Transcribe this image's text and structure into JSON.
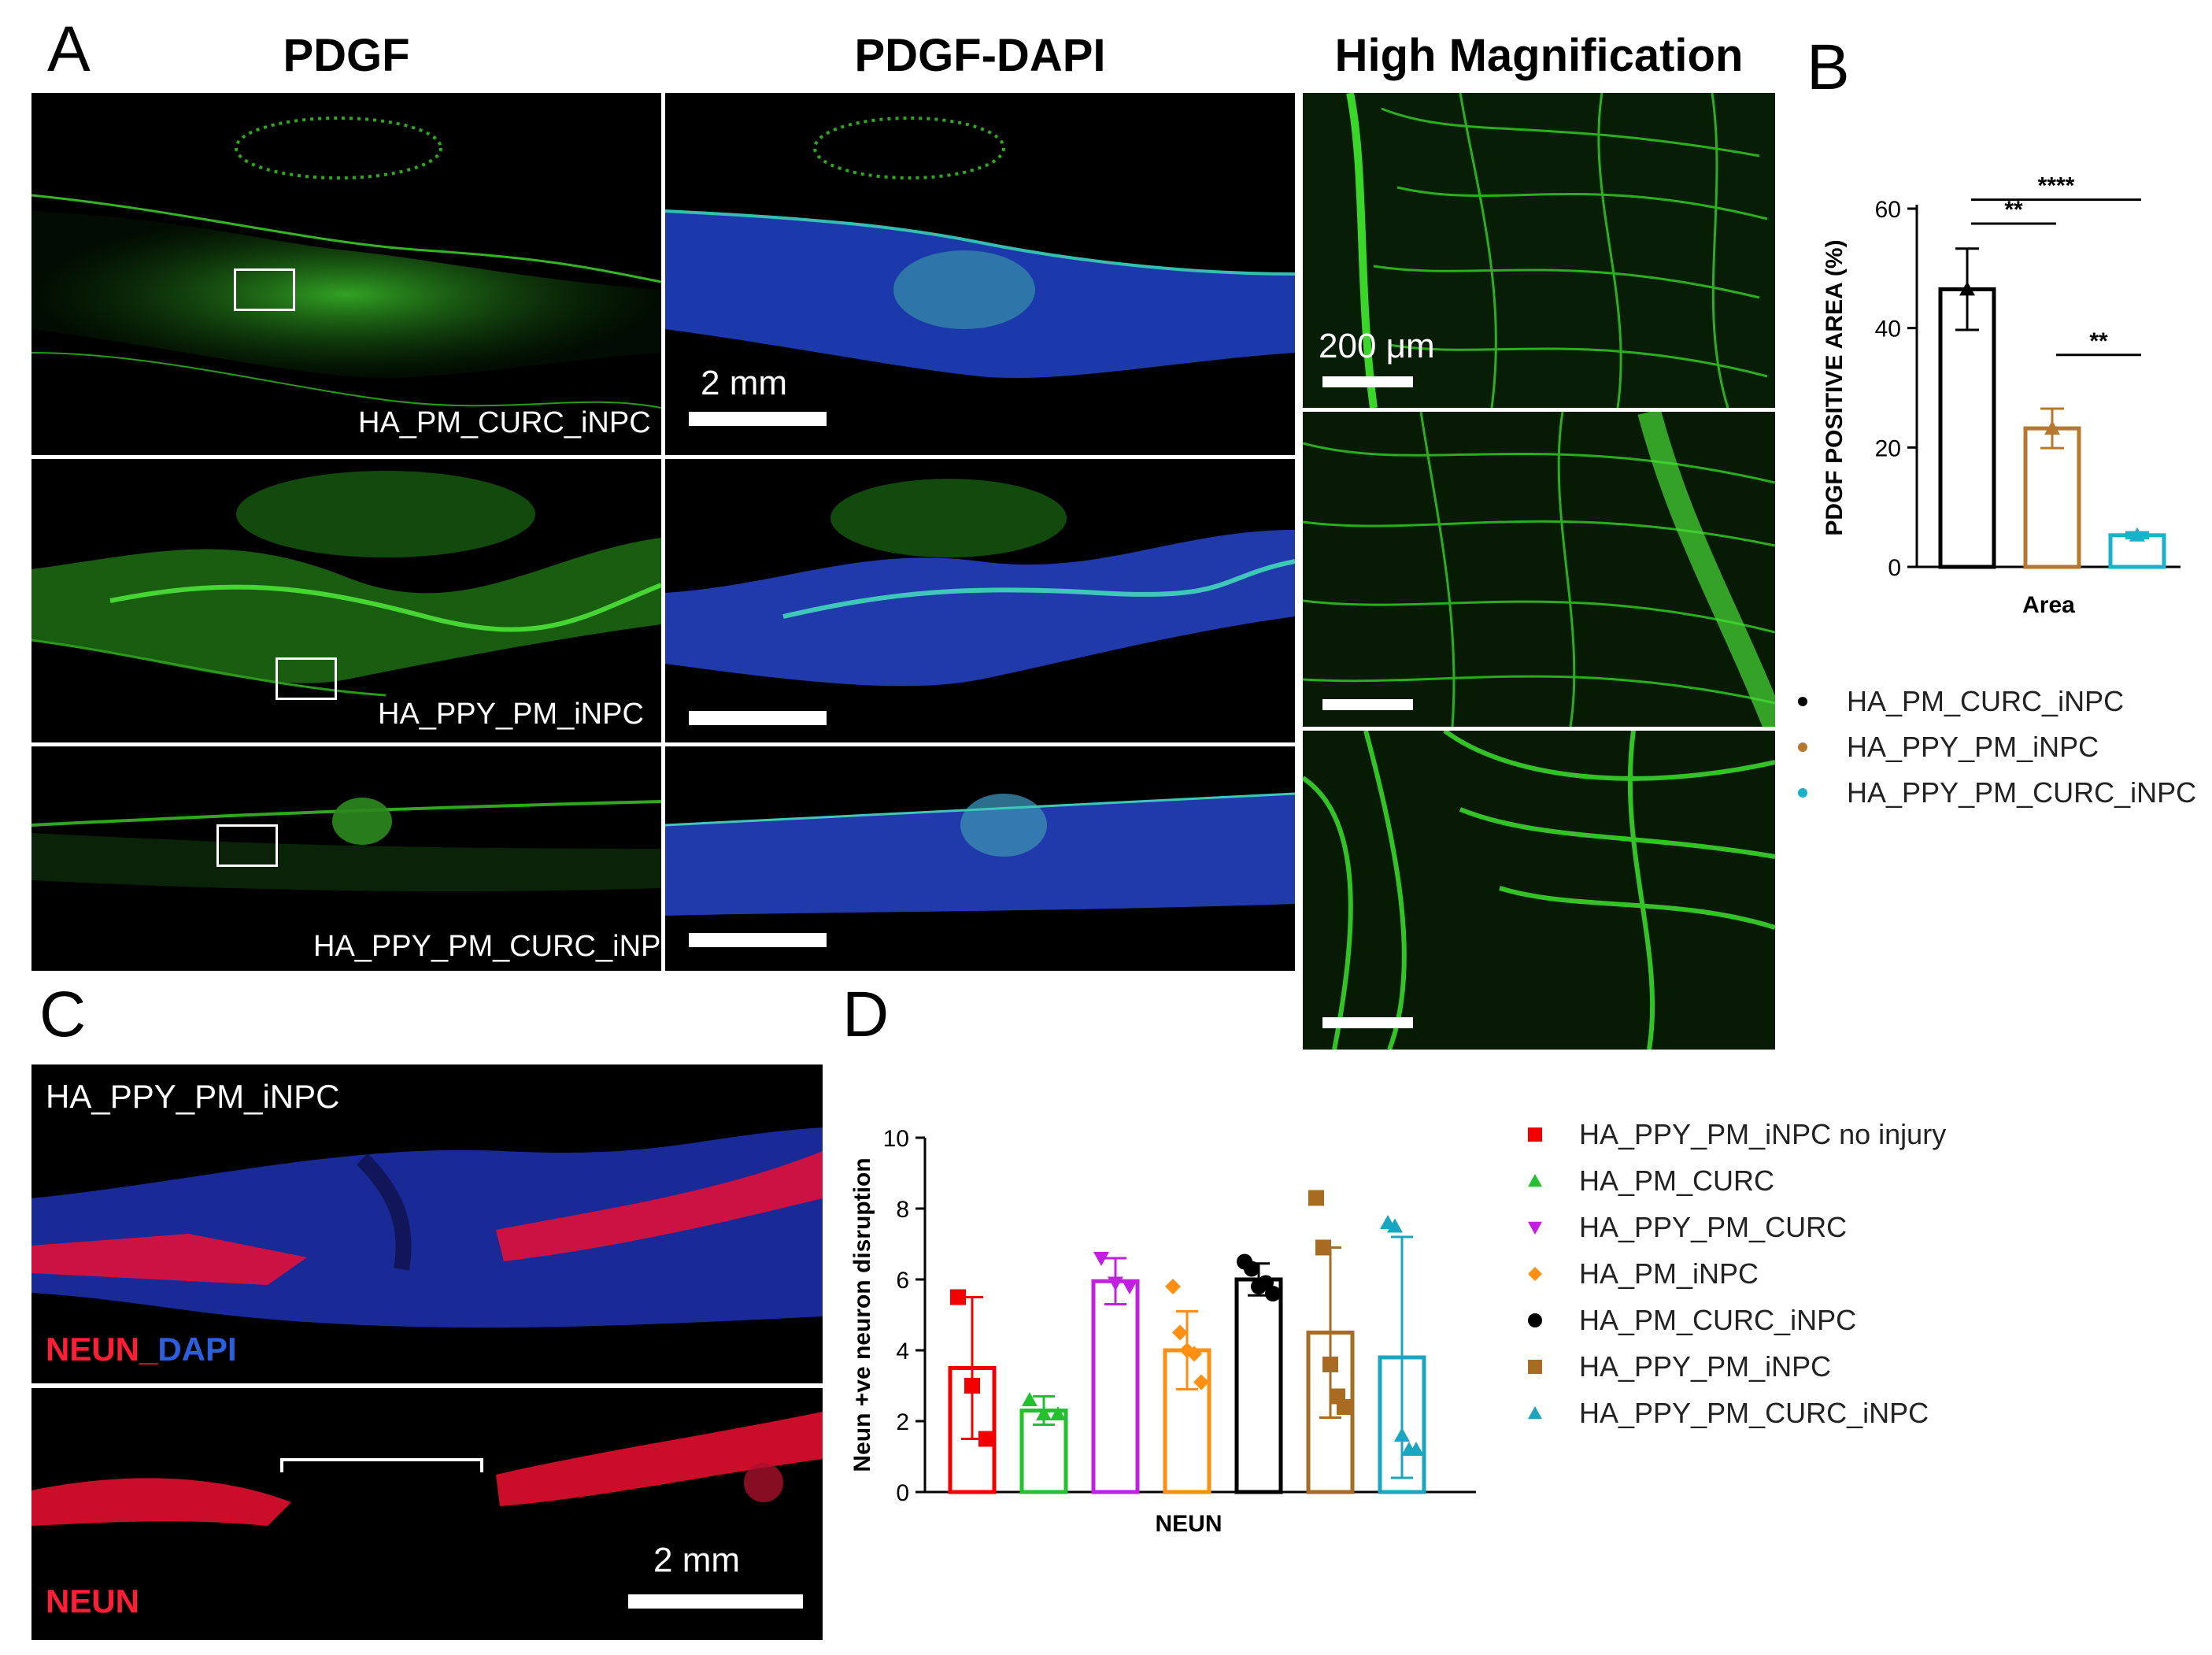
{
  "panel_labels": {
    "a": "A",
    "b": "B",
    "c": "C",
    "d": "D"
  },
  "panel_a": {
    "column_titles": [
      "PDGF",
      "PDGF-DAPI",
      "High Magnification"
    ],
    "row_labels": [
      "HA_PM_CURC_iNPC",
      "HA_PPY_PM_iNPC",
      "HA_PPY_PM_CURC_iNPC"
    ],
    "scale_bar_large": "2 mm",
    "scale_bar_small": "200 μm"
  },
  "panel_c": {
    "title": "HA_PPY_PM_iNPC",
    "label_top_red": "NEUN_",
    "label_top_blue": "DAPI",
    "label_bottom": "NEUN",
    "scale_bar": "2 mm"
  },
  "chart_b": {
    "chart_data": {
      "type": "bar",
      "ylabel": "PDGF POSITIVE AREA (%)",
      "xlabel": "Area",
      "ylim": [
        0,
        60
      ],
      "yticks": [
        0,
        20,
        40,
        60
      ],
      "categories": [
        "Area"
      ],
      "series": [
        {
          "name": "HA_PM_CURC_iNPC",
          "value": 46.5,
          "error": 6.8,
          "color": "#000000"
        },
        {
          "name": "HA_PPY_PM_iNPC",
          "value": 23.2,
          "error": 3.3,
          "color": "#b5782e"
        },
        {
          "name": "HA_PPY_PM_CURC_iNPC",
          "value": 5.3,
          "error": 0.5,
          "color": "#19b2c9"
        }
      ],
      "significance": [
        {
          "from": 0,
          "to": 1,
          "label": "**"
        },
        {
          "from": 0,
          "to": 2,
          "label": "****"
        },
        {
          "from": 1,
          "to": 2,
          "label": "**"
        }
      ]
    }
  },
  "chart_d": {
    "chart_data": {
      "type": "bar",
      "ylabel": "Neun +ve neuron disruption",
      "xlabel": "NEUN",
      "ylim": [
        0,
        10
      ],
      "yticks": [
        0,
        2,
        4,
        6,
        8,
        10
      ],
      "categories": [
        "NEUN"
      ],
      "series": [
        {
          "name": "HA_PPY_PM_iNPC no injury",
          "value": 3.5,
          "error": 2.0,
          "points": [
            5.5,
            3.0,
            1.5
          ],
          "color": "#f20000",
          "marker": "square"
        },
        {
          "name": "HA_PM_CURC",
          "value": 2.3,
          "error": 0.4,
          "points": [
            2.6,
            2.2,
            2.2
          ],
          "color": "#22c22e",
          "marker": "triangle-up"
        },
        {
          "name": "HA_PPY_PM_CURC",
          "value": 5.95,
          "error": 0.65,
          "points": [
            6.6,
            5.9,
            5.8
          ],
          "color": "#c21fe0",
          "marker": "triangle-down"
        },
        {
          "name": "HA_PM_iNPC",
          "value": 4.0,
          "error": 1.1,
          "points": [
            5.8,
            4.5,
            4.0,
            3.9,
            3.1
          ],
          "color": "#ff8f12",
          "marker": "diamond"
        },
        {
          "name": "HA_PM_CURC_iNPC",
          "value": 6.0,
          "error": 0.45,
          "points": [
            6.5,
            6.3,
            5.8,
            5.9,
            5.6
          ],
          "color": "#000000",
          "marker": "circle"
        },
        {
          "name": "HA_PPY_PM_iNPC",
          "value": 4.5,
          "error": 2.4,
          "points": [
            8.3,
            6.9,
            3.6,
            2.7,
            2.4
          ],
          "color": "#a86b22",
          "marker": "square"
        },
        {
          "name": "HA_PPY_PM_CURC_iNPC",
          "value": 3.8,
          "error": 3.4,
          "points": [
            7.6,
            7.5,
            1.6,
            1.2,
            1.2
          ],
          "color": "#1ba6c0",
          "marker": "triangle-up"
        }
      ]
    }
  }
}
